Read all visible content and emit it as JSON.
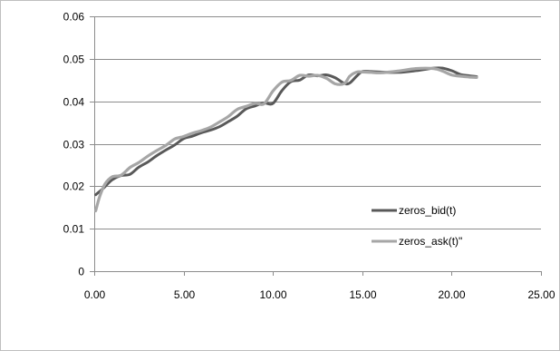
{
  "chart_data": {
    "type": "line",
    "title": "",
    "xlabel": "",
    "ylabel": "",
    "xlim": [
      0,
      25
    ],
    "ylim": [
      0,
      0.06
    ],
    "x_ticks": [
      {
        "value": 0,
        "label": "0.00"
      },
      {
        "value": 5,
        "label": "5.00"
      },
      {
        "value": 10,
        "label": "10.00"
      },
      {
        "value": 15,
        "label": "15.00"
      },
      {
        "value": 20,
        "label": "20.00"
      },
      {
        "value": 25,
        "label": "25.00"
      }
    ],
    "y_ticks": [
      {
        "value": 0,
        "label": "0"
      },
      {
        "value": 0.01,
        "label": "0.01"
      },
      {
        "value": 0.02,
        "label": "0.02"
      },
      {
        "value": 0.03,
        "label": "0.03"
      },
      {
        "value": 0.04,
        "label": "0.04"
      },
      {
        "value": 0.05,
        "label": "0.05"
      },
      {
        "value": 0.06,
        "label": "0.06"
      }
    ],
    "grid": {
      "horizontal": true,
      "vertical": false
    },
    "legend_position": "right",
    "series": [
      {
        "name": "zeros_bid(t)",
        "color": "#595959",
        "x": [
          0.08,
          0.5,
          1.0,
          1.5,
          2.0,
          2.5,
          3.0,
          3.5,
          4.0,
          4.5,
          5.0,
          5.5,
          6.0,
          6.5,
          7.0,
          7.5,
          8.0,
          8.5,
          9.0,
          9.5,
          10.0,
          10.5,
          11.0,
          11.5,
          12.0,
          12.5,
          13.0,
          13.5,
          14.0,
          14.3,
          14.7,
          15.0,
          15.5,
          16.0,
          17.0,
          18.0,
          19.0,
          19.5,
          20.0,
          20.5,
          21.0,
          21.4
        ],
        "values": [
          0.018,
          0.0195,
          0.0215,
          0.0225,
          0.0228,
          0.0245,
          0.0257,
          0.0272,
          0.0285,
          0.0297,
          0.0312,
          0.0318,
          0.0326,
          0.0332,
          0.034,
          0.0352,
          0.0365,
          0.0382,
          0.0389,
          0.0396,
          0.0395,
          0.0425,
          0.0446,
          0.045,
          0.0462,
          0.046,
          0.0462,
          0.0455,
          0.0442,
          0.0443,
          0.046,
          0.047,
          0.047,
          0.0469,
          0.0468,
          0.0472,
          0.0478,
          0.0478,
          0.0472,
          0.0463,
          0.046,
          0.0458
        ]
      },
      {
        "name": "zeros_ask(t)\"",
        "color": "#a6a6a6",
        "x": [
          0.08,
          0.3,
          0.6,
          1.0,
          1.5,
          2.0,
          2.5,
          3.0,
          3.5,
          4.0,
          4.5,
          5.0,
          5.5,
          6.0,
          6.5,
          7.0,
          7.5,
          8.0,
          8.5,
          9.0,
          9.5,
          10.0,
          10.5,
          11.0,
          11.5,
          12.0,
          12.5,
          13.0,
          13.5,
          14.0,
          14.3,
          14.7,
          15.0,
          15.5,
          16.0,
          17.0,
          18.0,
          19.0,
          19.5,
          20.0,
          20.5,
          21.0,
          21.4
        ],
        "values": [
          0.0142,
          0.0175,
          0.0205,
          0.0222,
          0.0226,
          0.0244,
          0.0256,
          0.0271,
          0.0284,
          0.0296,
          0.0311,
          0.0317,
          0.0325,
          0.0331,
          0.0339,
          0.0351,
          0.0364,
          0.0381,
          0.0388,
          0.0395,
          0.0394,
          0.0424,
          0.0445,
          0.0449,
          0.0461,
          0.0459,
          0.0461,
          0.0454,
          0.0441,
          0.0442,
          0.0459,
          0.0469,
          0.0469,
          0.0468,
          0.0467,
          0.0471,
          0.0477,
          0.0477,
          0.0471,
          0.0462,
          0.0459,
          0.0457,
          0.0456
        ]
      }
    ]
  }
}
